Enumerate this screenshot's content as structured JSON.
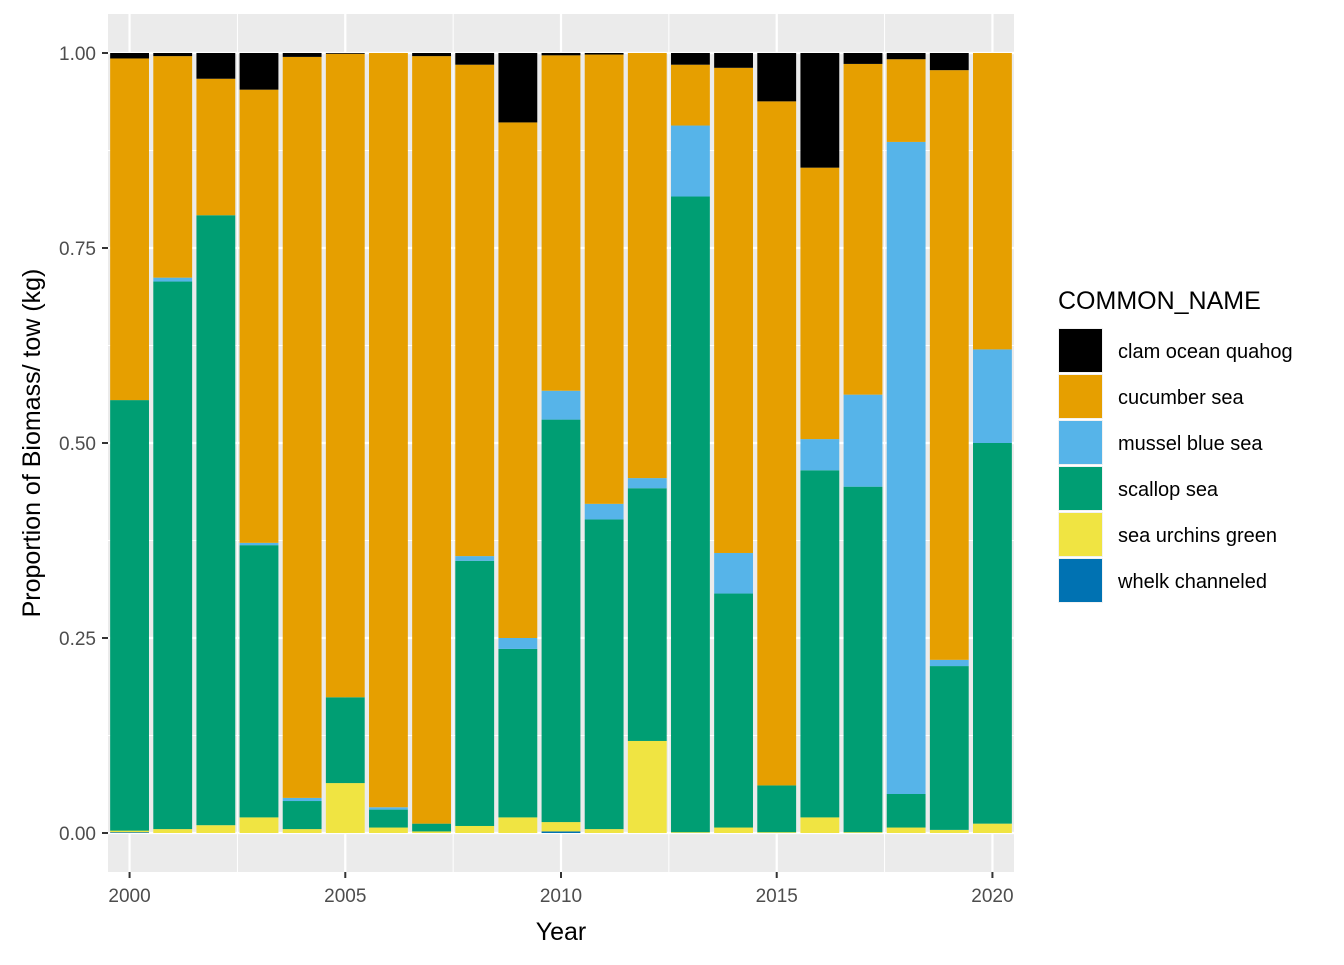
{
  "chart_data": {
    "type": "bar",
    "stacked": true,
    "title": "",
    "xlabel": "Year",
    "ylabel": "Proportion of Biomass/ tow (kg)",
    "xlim": [
      1999.5,
      2020.5
    ],
    "ylim": [
      0,
      1
    ],
    "x_ticks": [
      "2000",
      "2005",
      "2010",
      "2015",
      "2020"
    ],
    "y_ticks": [
      "0.00",
      "0.25",
      "0.50",
      "0.75",
      "1.00"
    ],
    "grid": true,
    "legend": {
      "title": "COMMON_NAME",
      "placement": "right",
      "entries": [
        "clam ocean quahog",
        "cucumber sea",
        "mussel blue sea",
        "scallop sea",
        "sea urchins green",
        "whelk channeled"
      ]
    },
    "categories": [
      2000,
      2001,
      2002,
      2003,
      2004,
      2005,
      2006,
      2007,
      2008,
      2009,
      2010,
      2011,
      2012,
      2013,
      2014,
      2015,
      2016,
      2017,
      2018,
      2019,
      2020
    ],
    "series": [
      {
        "name": "whelk channeled",
        "color": "#0072B2",
        "values": [
          0.001,
          0,
          0,
          0,
          0,
          0,
          0,
          0,
          0,
          0,
          0.002,
          0,
          0,
          0,
          0,
          0,
          0,
          0,
          0,
          0,
          0
        ]
      },
      {
        "name": "sea urchins green",
        "color": "#F0E442",
        "values": [
          0.002,
          0.005,
          0.01,
          0.02,
          0.005,
          0.064,
          0.007,
          0.002,
          0.009,
          0.02,
          0.012,
          0.005,
          0.118,
          0.001,
          0.007,
          0.001,
          0.02,
          0.001,
          0.007,
          0.004,
          0.012
        ]
      },
      {
        "name": "scallop sea",
        "color": "#009E73",
        "values": [
          0.552,
          0.702,
          0.782,
          0.349,
          0.036,
          0.11,
          0.023,
          0.01,
          0.34,
          0.216,
          0.516,
          0.397,
          0.324,
          0.815,
          0.3,
          0.06,
          0.445,
          0.443,
          0.043,
          0.21,
          0.488
        ]
      },
      {
        "name": "mussel blue sea",
        "color": "#56B4E9",
        "values": [
          0,
          0.005,
          0,
          0.003,
          0.004,
          0,
          0.003,
          0,
          0.006,
          0.014,
          0.037,
          0.02,
          0.013,
          0.091,
          0.052,
          0,
          0.04,
          0.118,
          0.836,
          0.008,
          0.12
        ]
      },
      {
        "name": "cucumber sea",
        "color": "#E69F00",
        "values": [
          0.438,
          0.284,
          0.175,
          0.581,
          0.95,
          0.825,
          0.967,
          0.984,
          0.63,
          0.661,
          0.43,
          0.576,
          0.545,
          0.078,
          0.622,
          0.877,
          0.348,
          0.424,
          0.106,
          0.756,
          0.38
        ]
      },
      {
        "name": "clam ocean quahog",
        "color": "#000000",
        "values": [
          0.007,
          0.004,
          0.033,
          0.047,
          0.005,
          0.001,
          0,
          0.004,
          0.015,
          0.089,
          0.003,
          0.002,
          0,
          0.015,
          0.019,
          0.062,
          0.147,
          0.014,
          0.008,
          0.022,
          0
        ]
      }
    ]
  },
  "colors": {
    "panel_bg": "#EBEBEB",
    "grid_major": "#FFFFFF",
    "text": "#000000",
    "tick_text": "#4D4D4D"
  }
}
